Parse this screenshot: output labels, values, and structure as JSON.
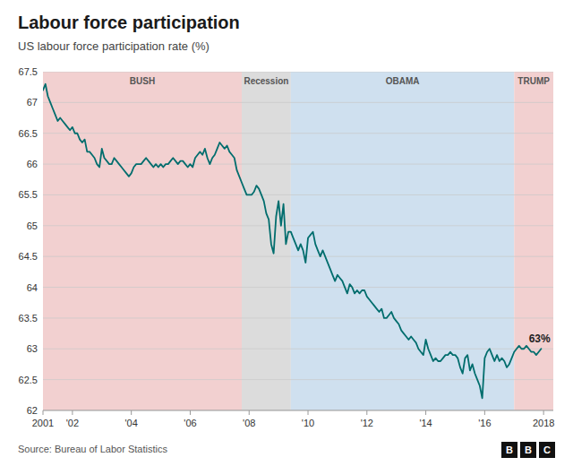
{
  "chart_data": {
    "type": "line",
    "title": "Labour force participation",
    "subtitle": "US labour force participation rate (%)",
    "source": "Source: Bureau of Labor Statistics",
    "logo": "BBC",
    "color": "#006d6d",
    "grid": true,
    "xlim": [
      2001.0,
      2018.33
    ],
    "ylim": [
      62,
      67.5
    ],
    "yticks": [
      62,
      62.5,
      63,
      63.5,
      64,
      64.5,
      65,
      65.5,
      66,
      66.5,
      67,
      67.5
    ],
    "xticks": [
      2001,
      {
        "value": 2002,
        "label": "'02"
      },
      {
        "value": 2004,
        "label": "'04"
      },
      {
        "value": 2006,
        "label": "'06"
      },
      {
        "value": 2008,
        "label": "'08"
      },
      {
        "value": 2010,
        "label": "'10"
      },
      {
        "value": 2012,
        "label": "'12"
      },
      {
        "value": 2014,
        "label": "'14"
      },
      {
        "value": 2016,
        "label": "'16"
      },
      2018
    ],
    "regions": [
      {
        "label": "BUSH",
        "start": 2001.0,
        "end": 2007.75,
        "color": "#f2d0d0"
      },
      {
        "label": "Recession",
        "start": 2007.75,
        "end": 2009.417,
        "color": "#dcdcdc"
      },
      {
        "label": "OBAMA",
        "start": 2009.417,
        "end": 2017.0,
        "color": "#cfe0ef"
      },
      {
        "label": "TRUMP",
        "start": 2017.0,
        "end": 2018.33,
        "color": "#f2d0d0"
      }
    ],
    "annotations": [
      {
        "text": "63%",
        "x": 2017.5,
        "y": 63.0
      }
    ],
    "x": [
      2001.0,
      2001.083,
      2001.167,
      2001.25,
      2001.333,
      2001.417,
      2001.5,
      2001.583,
      2001.667,
      2001.75,
      2001.833,
      2001.917,
      2002.0,
      2002.083,
      2002.167,
      2002.25,
      2002.333,
      2002.417,
      2002.5,
      2002.583,
      2002.667,
      2002.75,
      2002.833,
      2002.917,
      2003.0,
      2003.083,
      2003.167,
      2003.25,
      2003.333,
      2003.417,
      2003.5,
      2003.583,
      2003.667,
      2003.75,
      2003.833,
      2003.917,
      2004.0,
      2004.083,
      2004.167,
      2004.25,
      2004.333,
      2004.417,
      2004.5,
      2004.583,
      2004.667,
      2004.75,
      2004.833,
      2004.917,
      2005.0,
      2005.083,
      2005.167,
      2005.25,
      2005.333,
      2005.417,
      2005.5,
      2005.583,
      2005.667,
      2005.75,
      2005.833,
      2005.917,
      2006.0,
      2006.083,
      2006.167,
      2006.25,
      2006.333,
      2006.417,
      2006.5,
      2006.583,
      2006.667,
      2006.75,
      2006.833,
      2006.917,
      2007.0,
      2007.083,
      2007.167,
      2007.25,
      2007.333,
      2007.417,
      2007.5,
      2007.583,
      2007.667,
      2007.75,
      2007.833,
      2007.917,
      2008.0,
      2008.083,
      2008.167,
      2008.25,
      2008.333,
      2008.417,
      2008.5,
      2008.583,
      2008.667,
      2008.75,
      2008.833,
      2008.917,
      2009.0,
      2009.083,
      2009.167,
      2009.25,
      2009.333,
      2009.417,
      2009.5,
      2009.583,
      2009.667,
      2009.75,
      2009.833,
      2009.917,
      2010.0,
      2010.083,
      2010.167,
      2010.25,
      2010.333,
      2010.417,
      2010.5,
      2010.583,
      2010.667,
      2010.75,
      2010.833,
      2010.917,
      2011.0,
      2011.083,
      2011.167,
      2011.25,
      2011.333,
      2011.417,
      2011.5,
      2011.583,
      2011.667,
      2011.75,
      2011.833,
      2011.917,
      2012.0,
      2012.083,
      2012.167,
      2012.25,
      2012.333,
      2012.417,
      2012.5,
      2012.583,
      2012.667,
      2012.75,
      2012.833,
      2012.917,
      2013.0,
      2013.083,
      2013.167,
      2013.25,
      2013.333,
      2013.417,
      2013.5,
      2013.583,
      2013.667,
      2013.75,
      2013.833,
      2013.917,
      2014.0,
      2014.083,
      2014.167,
      2014.25,
      2014.333,
      2014.417,
      2014.5,
      2014.583,
      2014.667,
      2014.75,
      2014.833,
      2014.917,
      2015.0,
      2015.083,
      2015.167,
      2015.25,
      2015.333,
      2015.417,
      2015.5,
      2015.583,
      2015.667,
      2015.75,
      2015.833,
      2015.917,
      2016.0,
      2016.083,
      2016.167,
      2016.25,
      2016.333,
      2016.417,
      2016.5,
      2016.583,
      2016.667,
      2016.75,
      2016.833,
      2016.917,
      2017.0,
      2017.083,
      2017.167,
      2017.25,
      2017.333,
      2017.417,
      2017.5,
      2017.583,
      2017.667,
      2017.75,
      2017.833,
      2017.917
    ],
    "values": [
      67.2,
      67.3,
      67.1,
      67.0,
      66.9,
      66.8,
      66.7,
      66.75,
      66.7,
      66.65,
      66.6,
      66.55,
      66.6,
      66.5,
      66.5,
      66.4,
      66.35,
      66.4,
      66.2,
      66.2,
      66.15,
      66.1,
      66.0,
      65.95,
      66.25,
      66.1,
      66.05,
      66.0,
      66.0,
      66.1,
      66.05,
      66.0,
      65.95,
      65.9,
      65.85,
      65.8,
      65.85,
      65.95,
      66.0,
      66.0,
      66.0,
      66.05,
      66.1,
      66.05,
      66.0,
      65.95,
      66.0,
      65.95,
      66.0,
      65.95,
      66.0,
      66.0,
      66.05,
      66.1,
      66.05,
      66.0,
      66.05,
      66.05,
      66.0,
      65.95,
      66.0,
      65.95,
      66.1,
      66.15,
      66.2,
      66.15,
      66.25,
      66.1,
      66.0,
      66.1,
      66.15,
      66.25,
      66.35,
      66.3,
      66.25,
      66.3,
      66.2,
      66.15,
      66.1,
      65.9,
      65.8,
      65.7,
      65.6,
      65.5,
      65.5,
      65.5,
      65.55,
      65.65,
      65.6,
      65.5,
      65.4,
      65.2,
      65.1,
      64.7,
      64.55,
      65.15,
      65.4,
      65.0,
      65.35,
      64.7,
      64.9,
      64.9,
      64.8,
      64.7,
      64.6,
      64.7,
      64.6,
      64.4,
      64.8,
      64.85,
      64.9,
      64.7,
      64.6,
      64.5,
      64.6,
      64.5,
      64.4,
      64.3,
      64.2,
      64.1,
      64.2,
      64.15,
      64.1,
      64.0,
      63.9,
      64.05,
      64.0,
      63.9,
      63.95,
      63.9,
      63.95,
      63.95,
      63.85,
      63.8,
      63.75,
      63.7,
      63.65,
      63.6,
      63.65,
      63.5,
      63.5,
      63.55,
      63.6,
      63.5,
      63.45,
      63.4,
      63.3,
      63.25,
      63.2,
      63.15,
      63.2,
      63.15,
      63.1,
      63.0,
      62.95,
      62.9,
      63.15,
      63.0,
      62.9,
      62.8,
      62.85,
      62.8,
      62.8,
      62.85,
      62.9,
      62.9,
      62.95,
      62.9,
      62.9,
      62.85,
      62.7,
      62.6,
      62.85,
      62.9,
      62.65,
      62.75,
      62.6,
      62.5,
      62.4,
      62.2,
      62.85,
      62.95,
      63.0,
      62.9,
      62.8,
      62.9,
      62.8,
      62.85,
      62.8,
      62.7,
      62.75,
      62.85,
      62.95,
      63.0,
      63.05,
      63.0,
      63.0,
      63.05,
      63.0,
      62.95,
      62.95,
      62.9,
      62.95,
      63.0
    ]
  }
}
